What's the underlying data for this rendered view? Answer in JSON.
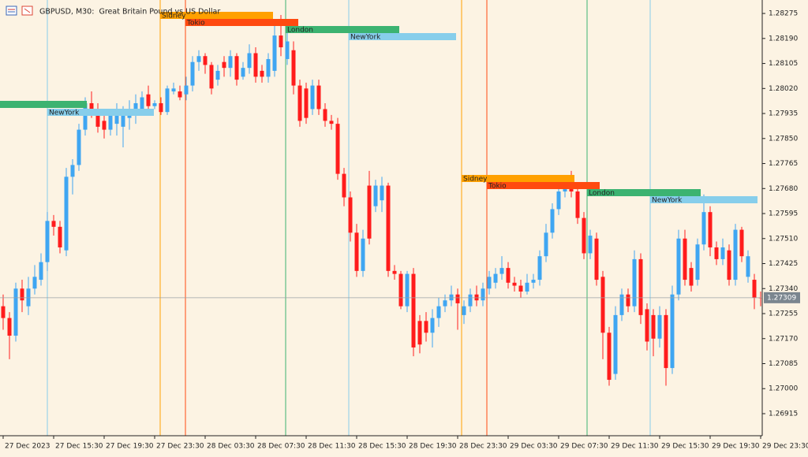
{
  "chart_data": {
    "type": "candlestick",
    "title": "GBPUSD, M30:  Great Britain Pound vs US Dollar",
    "up_color": "#3fa6f2",
    "down_color": "#ff1c1c",
    "ylim": [
      1.2684,
      1.2831
    ],
    "yticks": [
      1.28275,
      {
        "value": 1.2819,
        "label": "1.28190"
      },
      1.28105,
      {
        "value": 1.2802,
        "label": "1.28020"
      },
      1.27935,
      {
        "value": 1.2785,
        "label": "1.27850"
      },
      1.27765,
      {
        "value": 1.2768,
        "label": "1.27680"
      },
      1.27595,
      {
        "value": 1.2751,
        "label": "1.27510"
      },
      1.27425,
      {
        "value": 1.2734,
        "label": "1.27340"
      },
      1.27255,
      {
        "value": 1.2717,
        "label": "1.27170"
      },
      1.27085,
      {
        "value": 1.27,
        "label": "1.27000"
      },
      1.26915
    ],
    "sessions": [
      {
        "name": "Sidney",
        "color": "#ffa000"
      },
      {
        "name": "Tokio",
        "color": "#ff4a10"
      },
      {
        "name": "London",
        "color": "#3cb371"
      },
      {
        "name": "NewYork",
        "color": "#87ceeb"
      }
    ],
    "categories": [
      "27 Dec 2023",
      null,
      null,
      null,
      null,
      null,
      null,
      null,
      "27 Dec 15:30",
      null,
      null,
      null,
      null,
      null,
      null,
      null,
      "27 Dec 19:30",
      null,
      null,
      null,
      null,
      null,
      null,
      null,
      "27 Dec 23:30",
      null,
      null,
      null,
      null,
      null,
      null,
      null,
      "28 Dec 03:30",
      null,
      null,
      null,
      null,
      null,
      null,
      null,
      "28 Dec 07:30",
      null,
      null,
      null,
      null,
      null,
      null,
      null,
      "28 Dec 11:30",
      null,
      null,
      null,
      null,
      null,
      null,
      null,
      "28 Dec 15:30",
      null,
      null,
      null,
      null,
      null,
      null,
      null,
      "28 Dec 19:30",
      null,
      null,
      null,
      null,
      null,
      null,
      null,
      "28 Dec 23:30",
      null,
      null,
      null,
      null,
      null,
      null,
      null,
      "29 Dec 03:30",
      null,
      null,
      null,
      null,
      null,
      null,
      null,
      "29 Dec 07:30",
      null,
      null,
      null,
      null,
      null,
      null,
      null,
      "29 Dec 11:30",
      null,
      null,
      null,
      null,
      null,
      null,
      null,
      "29 Dec 15:30",
      null,
      null,
      null,
      null,
      null,
      null,
      null,
      "29 Dec 19:30",
      null,
      null,
      null,
      null,
      null,
      null,
      null,
      "29 Dec 23:30"
    ],
    "open": [
      1.2728,
      1.2724,
      1.2718,
      1.2734,
      1.2728,
      1.2734,
      1.2737,
      1.2743,
      1.2757,
      1.2755,
      1.2747,
      1.2772,
      1.2776,
      1.2788,
      1.2797,
      1.2795,
      1.2791,
      1.2788,
      1.279,
      1.2789,
      1.2792,
      1.2793,
      1.2795,
      1.28,
      1.2796,
      1.2797,
      1.2794,
      1.2801,
      1.2801,
      1.28,
      1.2803,
      1.2811,
      1.2813,
      1.281,
      1.2805,
      1.2811,
      1.2809,
      1.2813,
      1.2806,
      1.2809,
      1.2814,
      1.2808,
      1.2806,
      1.2808,
      1.282,
      1.2812,
      1.2815,
      1.2803,
      1.2802,
      1.2795,
      1.2803,
      1.2795,
      1.2791,
      1.279,
      1.2773,
      1.2765,
      1.2753,
      1.274,
      1.2769,
      1.2762,
      1.2764,
      1.2769,
      1.274,
      1.2739,
      1.2728,
      1.2739,
      1.2723,
      1.2723,
      1.2719,
      1.2724,
      1.2728,
      1.273,
      1.2732,
      1.2725,
      1.2728,
      1.2732,
      1.273,
      1.2734,
      1.2736,
      1.2739,
      1.2741,
      1.2736,
      1.2735,
      1.2733,
      1.2736,
      1.2737,
      1.2745,
      1.2753,
      1.2761,
      1.2767,
      1.277,
      1.2767,
      1.2758,
      1.2746,
      1.2751,
      1.2738,
      1.2719,
      1.2705,
      1.2725,
      1.2732,
      1.2728,
      1.2744,
      1.2727,
      1.2725,
      1.2717,
      1.2725,
      1.2707,
      1.2732,
      1.2751,
      1.2741,
      1.2737,
      1.2749,
      1.276,
      1.2748,
      1.2744,
      1.2747,
      1.2737,
      1.2754,
      1.2738,
      1.2737,
      1.2731
    ],
    "high": [
      1.2732,
      1.2726,
      1.2736,
      1.2737,
      1.2738,
      1.2742,
      1.2746,
      1.276,
      1.2759,
      1.2757,
      1.2775,
      1.2778,
      1.279,
      1.2799,
      1.2801,
      1.2797,
      1.2795,
      1.2795,
      1.2797,
      1.2796,
      1.2798,
      1.28,
      1.2801,
      1.2803,
      1.2798,
      1.2799,
      1.2803,
      1.2804,
      1.2803,
      1.2806,
      1.2813,
      1.2815,
      1.2814,
      1.2811,
      1.281,
      1.2813,
      1.2815,
      1.2814,
      1.2811,
      1.2817,
      1.2816,
      1.281,
      1.2814,
      1.2824,
      1.2827,
      1.2822,
      1.2818,
      1.2805,
      1.2804,
      1.2805,
      1.2805,
      1.2797,
      1.2793,
      1.2792,
      1.2775,
      1.2767,
      1.2756,
      1.2754,
      1.2774,
      1.2771,
      1.2772,
      1.277,
      1.2742,
      1.274,
      1.274,
      1.2741,
      1.2725,
      1.2726,
      1.2727,
      1.2731,
      1.2732,
      1.2735,
      1.2734,
      1.273,
      1.2734,
      1.2735,
      1.2736,
      1.274,
      1.2741,
      1.2745,
      1.2743,
      1.2738,
      1.2737,
      1.2739,
      1.2739,
      1.2747,
      1.2756,
      1.2763,
      1.2769,
      1.2772,
      1.2774,
      1.2769,
      1.276,
      1.2754,
      1.2753,
      1.274,
      1.2721,
      1.2728,
      1.2734,
      1.2734,
      1.2747,
      1.2746,
      1.2729,
      1.2727,
      1.2728,
      1.2727,
      1.2735,
      1.2754,
      1.2754,
      1.2743,
      1.2751,
      1.2766,
      1.2762,
      1.275,
      1.2751,
      1.2749,
      1.2756,
      1.2755,
      1.2747,
      1.2739,
      1.2733
    ],
    "low": [
      1.272,
      1.271,
      1.2716,
      1.2726,
      1.2725,
      1.2732,
      1.2735,
      1.274,
      1.2752,
      1.2746,
      1.2745,
      1.2766,
      1.2774,
      1.2786,
      1.2792,
      1.2787,
      1.2785,
      1.2786,
      1.2786,
      1.2782,
      1.2788,
      1.279,
      1.2793,
      1.2794,
      1.2795,
      1.2793,
      1.2793,
      1.28,
      1.2798,
      1.2798,
      1.2801,
      1.2808,
      1.2807,
      1.28,
      1.2803,
      1.2806,
      1.2806,
      1.2803,
      1.2805,
      1.2807,
      1.2804,
      1.2804,
      1.2804,
      1.2806,
      1.2813,
      1.281,
      1.28,
      1.2789,
      1.279,
      1.2793,
      1.2793,
      1.2789,
      1.2788,
      1.2771,
      1.2762,
      1.275,
      1.2738,
      1.2738,
      1.2749,
      1.276,
      1.276,
      1.2738,
      1.2737,
      1.2727,
      1.2726,
      1.2711,
      1.2712,
      1.2716,
      1.2714,
      1.2721,
      1.2726,
      1.2728,
      1.272,
      1.2722,
      1.2726,
      1.2728,
      1.2728,
      1.2732,
      1.2734,
      1.2737,
      1.2734,
      1.2733,
      1.2731,
      1.2732,
      1.2734,
      1.2735,
      1.2743,
      1.2751,
      1.2759,
      1.2765,
      1.2765,
      1.2756,
      1.2744,
      1.2744,
      1.2735,
      1.271,
      1.2701,
      1.2703,
      1.2723,
      1.2726,
      1.2726,
      1.2722,
      1.2713,
      1.2711,
      1.2714,
      1.2701,
      1.2705,
      1.273,
      1.2735,
      1.2733,
      1.2735,
      1.2747,
      1.2745,
      1.2742,
      1.2742,
      1.2735,
      1.2735,
      1.2743,
      1.2736,
      1.2727,
      1.2728
    ],
    "close": [
      1.2724,
      1.2718,
      1.2734,
      1.273,
      1.2734,
      1.2738,
      1.2743,
      1.2757,
      1.2755,
      1.2748,
      1.2772,
      1.2776,
      1.2788,
      1.2797,
      1.2794,
      1.2789,
      1.2788,
      1.2793,
      1.2793,
      1.2794,
      1.2795,
      1.2797,
      1.2799,
      1.2796,
      1.2797,
      1.2794,
      1.2802,
      1.2802,
      1.2799,
      1.2803,
      1.2811,
      1.2813,
      1.281,
      1.2802,
      1.2808,
      1.2809,
      1.2813,
      1.2805,
      1.2809,
      1.2814,
      1.2806,
      1.2806,
      1.2812,
      1.282,
      1.2816,
      1.2818,
      1.2803,
      1.2791,
      1.2792,
      1.2803,
      1.2795,
      1.2791,
      1.279,
      1.2773,
      1.2765,
      1.2753,
      1.274,
      1.2751,
      1.2751,
      1.2769,
      1.2769,
      1.274,
      1.2739,
      1.2728,
      1.2739,
      1.2714,
      1.2715,
      1.2719,
      1.2724,
      1.2728,
      1.273,
      1.2732,
      1.2729,
      1.2728,
      1.2732,
      1.273,
      1.2734,
      1.2738,
      1.2739,
      1.2741,
      1.2736,
      1.2735,
      1.2733,
      1.2736,
      1.2737,
      1.2745,
      1.2753,
      1.2761,
      1.2767,
      1.277,
      1.2767,
      1.2758,
      1.2746,
      1.2752,
      1.2737,
      1.2719,
      1.2703,
      1.2725,
      1.2732,
      1.2728,
      1.2744,
      1.2725,
      1.2716,
      1.2717,
      1.2725,
      1.2707,
      1.2732,
      1.2751,
      1.2737,
      1.2735,
      1.2749,
      1.276,
      1.2748,
      1.2744,
      1.2748,
      1.2737,
      1.2754,
      1.2745,
      1.2745,
      1.2731,
      1.27309
    ]
  }
}
